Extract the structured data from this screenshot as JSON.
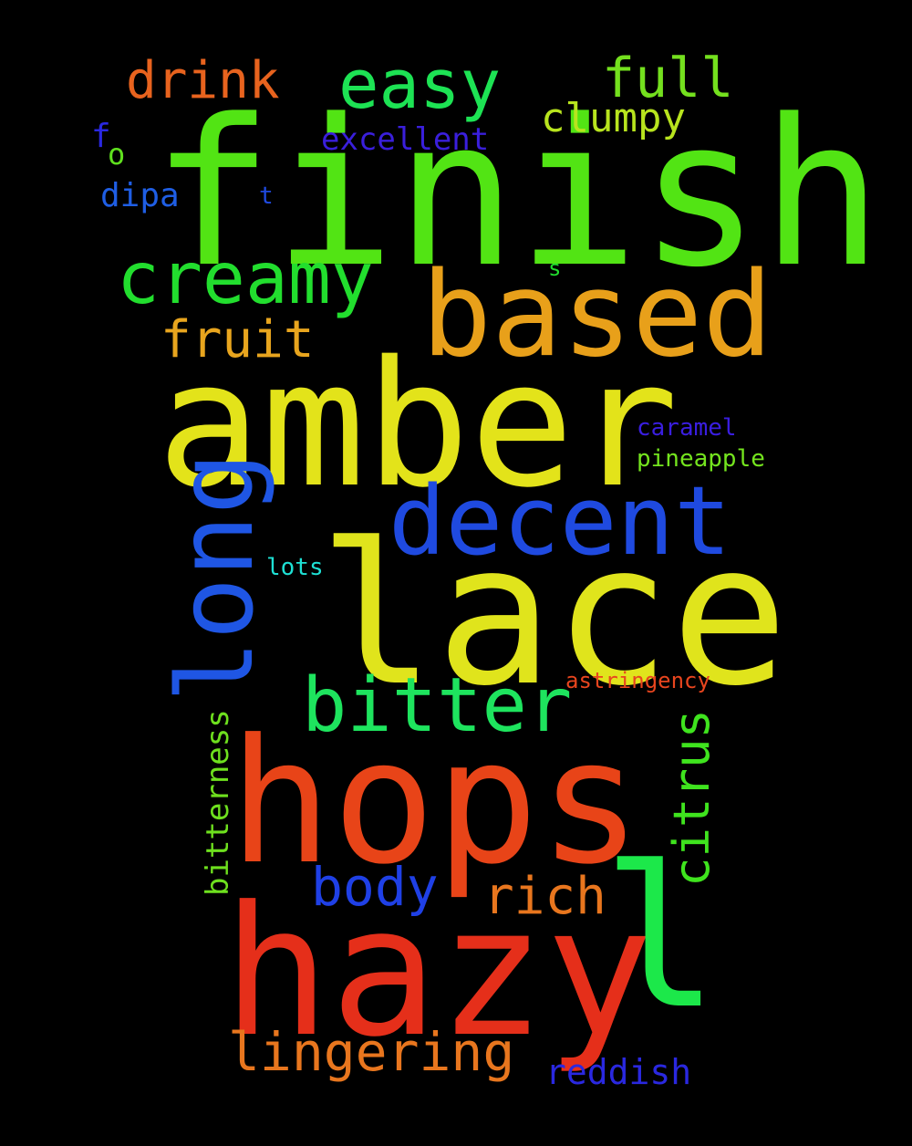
{
  "words": [
    {
      "text": "finish",
      "color": "#52e414"
    },
    {
      "text": "amber",
      "color": "#e3e31a"
    },
    {
      "text": "lace",
      "color": "#e0e41c"
    },
    {
      "text": "hops",
      "color": "#e84418"
    },
    {
      "text": "hazy",
      "color": "#e52f1a"
    },
    {
      "text": "based",
      "color": "#e8a01a"
    },
    {
      "text": "decent",
      "color": "#1f4ae0"
    },
    {
      "text": "l",
      "color": "#1ce84a"
    },
    {
      "text": "long",
      "color": "#1f56e4"
    },
    {
      "text": "creamy",
      "color": "#22de2e"
    },
    {
      "text": "bitter",
      "color": "#1ee45e"
    },
    {
      "text": "easy",
      "color": "#1de354"
    },
    {
      "text": "full",
      "color": "#74e01e"
    },
    {
      "text": "drink",
      "color": "#e8631e"
    },
    {
      "text": "fruit",
      "color": "#e8a51e"
    },
    {
      "text": "clumpy",
      "color": "#b8e41e"
    },
    {
      "text": "excellent",
      "color": "#3a1fdc"
    },
    {
      "text": "body",
      "color": "#1f40e6"
    },
    {
      "text": "rich",
      "color": "#e8761e"
    },
    {
      "text": "citrus",
      "color": "#3fe41e"
    },
    {
      "text": "lingering",
      "color": "#e8761e"
    },
    {
      "text": "reddish",
      "color": "#2a28e0"
    },
    {
      "text": "bitterness",
      "color": "#6ee01e"
    },
    {
      "text": "astringency",
      "color": "#e8451e"
    },
    {
      "text": "caramel",
      "color": "#3a1ee0"
    },
    {
      "text": "pineapple",
      "color": "#74e41e"
    },
    {
      "text": "lots",
      "color": "#1ee0d4"
    },
    {
      "text": "dipa",
      "color": "#1f5ee4"
    },
    {
      "text": "f",
      "color": "#2a28e0"
    },
    {
      "text": "o",
      "color": "#5fe01e"
    },
    {
      "text": "t",
      "color": "#1f4ae0"
    },
    {
      "text": "s",
      "color": "#22de2e"
    }
  ]
}
